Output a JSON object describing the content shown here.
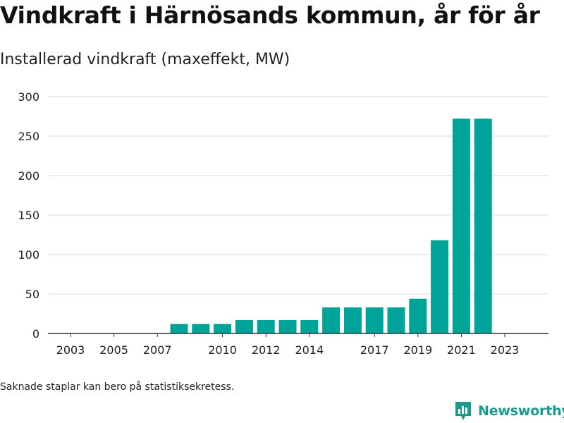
{
  "title": "Vindkraft i Härnösands kommun, år för år",
  "subtitle": "Installerad vindkraft (maxeffekt, MW)",
  "footnote": "Saknade staplar kan bero på statistiksekretess.",
  "brand": {
    "name": "Newsworthy",
    "icon": "newsworthy-logo-icon",
    "color": "#1a9b8c"
  },
  "chart_data": {
    "type": "bar",
    "categories": [
      "2003",
      "2004",
      "2005",
      "2006",
      "2007",
      "2008",
      "2009",
      "2010",
      "2011",
      "2012",
      "2013",
      "2014",
      "2015",
      "2016",
      "2017",
      "2018",
      "2019",
      "2020",
      "2021",
      "2022",
      "2023"
    ],
    "values": [
      null,
      null,
      null,
      null,
      null,
      12,
      12,
      12,
      17,
      17,
      17,
      17,
      33,
      33,
      33,
      33,
      44,
      118,
      272,
      272,
      null
    ],
    "x_tick_labels": [
      "2003",
      "2005",
      "2007",
      "2010",
      "2012",
      "2014",
      "2017",
      "2019",
      "2021",
      "2023"
    ],
    "y_ticks": [
      0,
      50,
      100,
      150,
      200,
      250,
      300
    ],
    "ylim": [
      0,
      300
    ],
    "bar_color": "#00a398",
    "grid": true,
    "xlabel": "",
    "ylabel": ""
  }
}
